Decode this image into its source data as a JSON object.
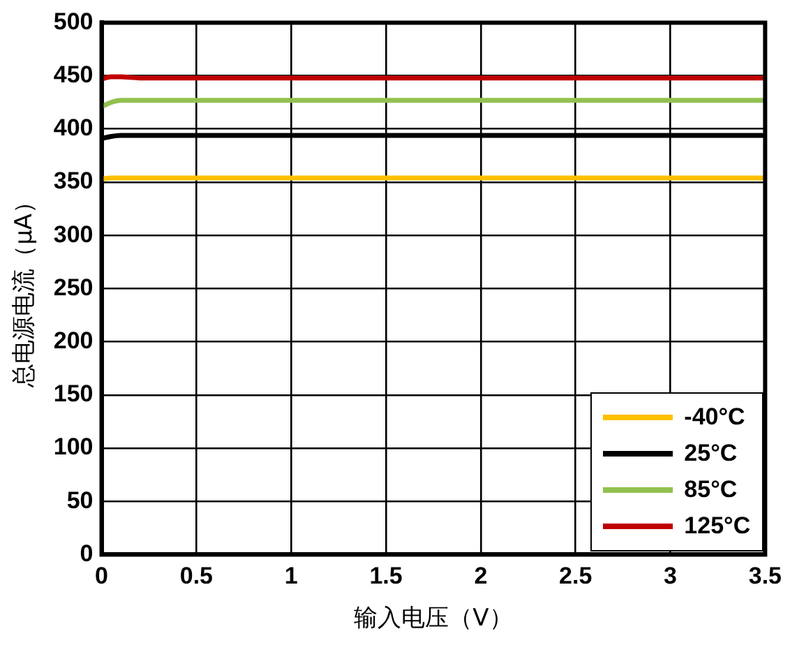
{
  "chart_data": {
    "type": "line",
    "xlabel": "输入电压（V）",
    "ylabel": "总电源电流（μA）",
    "x": [
      0,
      0.05,
      0.1,
      0.2,
      0.5,
      1,
      1.5,
      2,
      2.5,
      3,
      3.5
    ],
    "series": [
      {
        "name": "-40°C",
        "color": "#ffc000",
        "values": [
          353,
          354,
          354,
          354,
          354,
          354,
          354,
          354,
          354,
          354,
          354
        ]
      },
      {
        "name": "25°C",
        "color": "#000000",
        "values": [
          391,
          393,
          394,
          394,
          394,
          394,
          394,
          394,
          394,
          394,
          394
        ]
      },
      {
        "name": "85°C",
        "color": "#92c050",
        "values": [
          421,
          425,
          427,
          427,
          427,
          427,
          427,
          427,
          427,
          427,
          427
        ]
      },
      {
        "name": "125°C",
        "color": "#c00000",
        "values": [
          447,
          449,
          449,
          448,
          448,
          448,
          448,
          448,
          448,
          448,
          448
        ]
      }
    ],
    "xlim": [
      0,
      3.5
    ],
    "xticks": [
      0,
      0.5,
      1,
      1.5,
      2,
      2.5,
      3,
      3.5
    ],
    "ylim": [
      0,
      500
    ],
    "yticks": [
      0,
      50,
      100,
      150,
      200,
      250,
      300,
      350,
      400,
      450,
      500
    ],
    "grid": true,
    "legend": "bottom right",
    "marker": "none",
    "line_style": "solid"
  }
}
